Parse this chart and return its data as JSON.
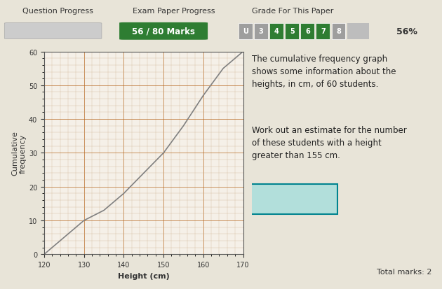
{
  "title_bar": {
    "question_progress_label": "Question Progress",
    "exam_paper_label": "Exam Paper Progress",
    "exam_paper_value": "56 / 80 Marks",
    "grade_label": "Grade For This Paper",
    "grade_cells": [
      "U",
      "3",
      "4",
      "5",
      "6",
      "7",
      "8"
    ],
    "grade_active": [
      false,
      false,
      false,
      true,
      true,
      true,
      false
    ],
    "percent": "56%",
    "bar_green": "#2e7d32",
    "bar_bg": "#9e9e9e"
  },
  "graph": {
    "x_data": [
      120,
      130,
      135,
      140,
      145,
      150,
      155,
      160,
      165,
      170
    ],
    "y_data": [
      0,
      10,
      13,
      18,
      24,
      30,
      38,
      47,
      55,
      60
    ],
    "xlabel": "Height (cm)",
    "ylabel": "Cumulative\nfrequency",
    "xlim": [
      120,
      170
    ],
    "ylim": [
      0,
      60
    ],
    "xticks": [
      120,
      130,
      140,
      150,
      160,
      170
    ],
    "yticks": [
      0,
      10,
      20,
      30,
      40,
      50,
      60
    ],
    "grid_color": "#b5651d",
    "line_color": "#808080",
    "bg_color": "#f5f0e8",
    "minor_grid_color": "#c8a882"
  },
  "text_block": {
    "para1": "The cumulative frequency graph\nshows some information about the\nheights, in cm, of 60 students.",
    "para2": "Work out an estimate for the number\nof these students with a height\ngreater than 155 cm.",
    "total_marks": "Total marks: 2",
    "answer_box_color": "#b2dfdb",
    "answer_box_border": "#00838f"
  },
  "bg_color": "#e8e4d8"
}
